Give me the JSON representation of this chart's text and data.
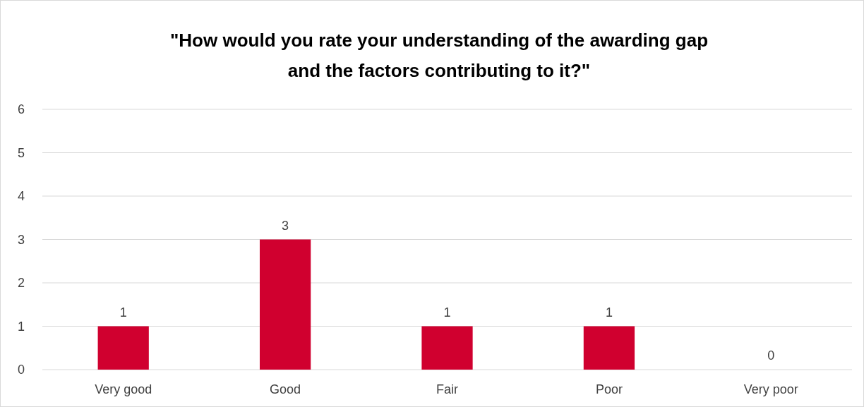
{
  "chart_data": {
    "type": "bar",
    "title": "\"How would you rate your understanding of the awarding gap\nand the factors contributing to it?\"",
    "categories": [
      "Very good",
      "Good",
      "Fair",
      "Poor",
      "Very poor"
    ],
    "values": [
      1,
      3,
      1,
      1,
      0
    ],
    "color": "#d0002f",
    "ylim": [
      0,
      6
    ],
    "yticks": [
      0,
      1,
      2,
      3,
      4,
      5,
      6
    ],
    "grid": "y",
    "data_labels": true
  }
}
